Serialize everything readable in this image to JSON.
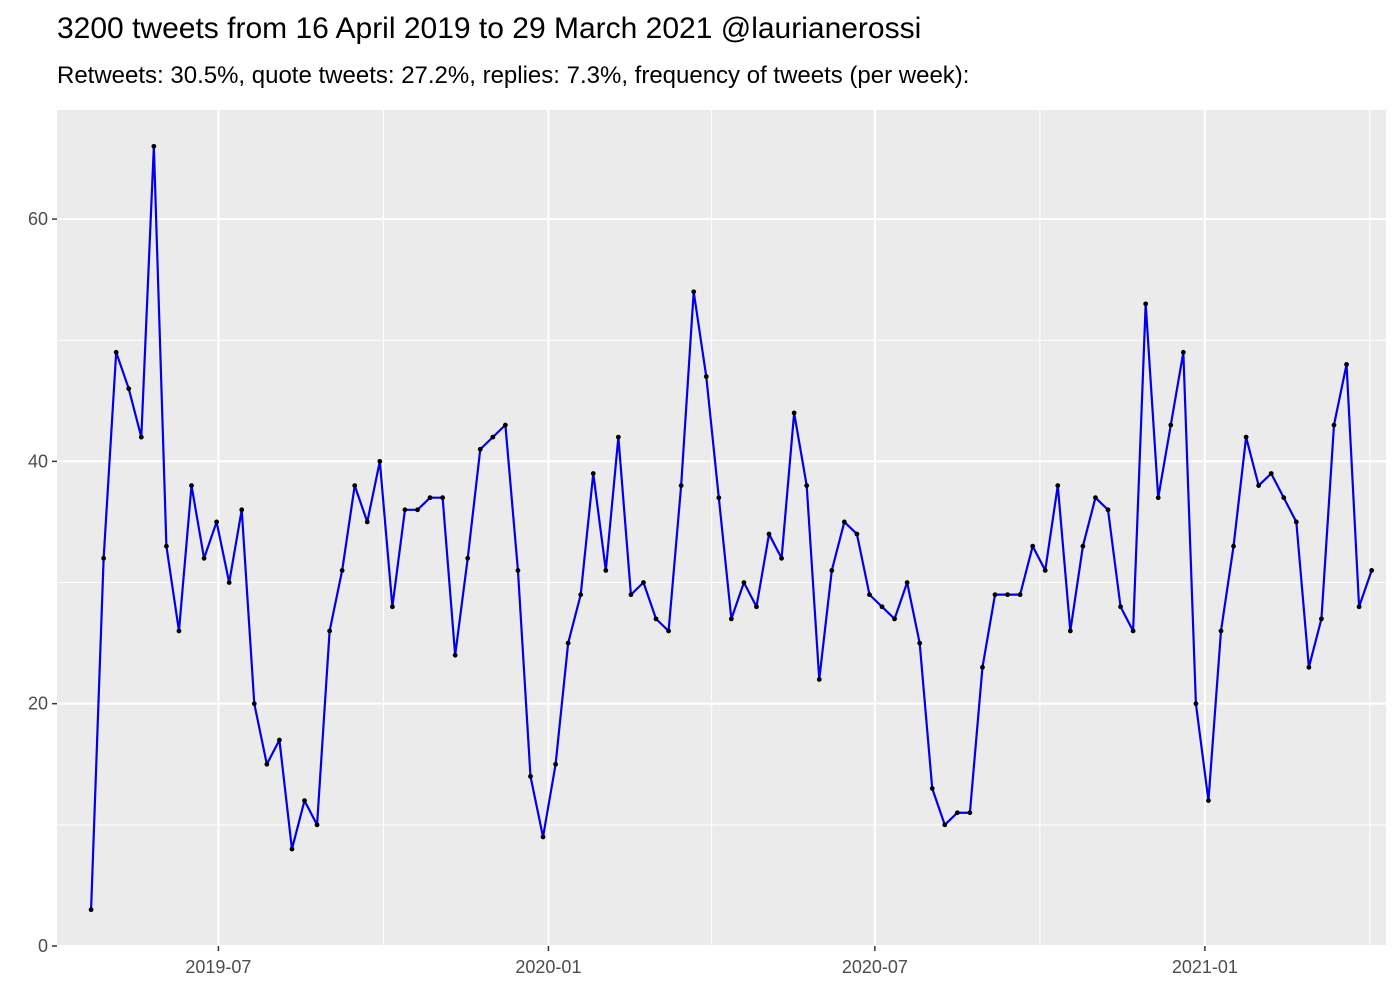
{
  "chart_data": {
    "type": "line",
    "title": "3200 tweets from 16 April 2019 to 29 March 2021 @laurianerossi",
    "subtitle": "Retweets: 30.5%, quote tweets: 27.2%, replies: 7.3%, frequency of tweets (per week):",
    "xlabel": "",
    "ylabel": "",
    "x_start": "2019-04-21",
    "x_step_days": 7,
    "xlim": [
      "2019-04-02",
      "2021-04-12"
    ],
    "ylim": [
      0,
      69
    ],
    "x_ticks": [
      "2019-07-01",
      "2020-01-01",
      "2020-07-01",
      "2021-01-01"
    ],
    "x_tick_labels": [
      "2019-07",
      "2020-01",
      "2020-07",
      "2021-01"
    ],
    "y_ticks": [
      0,
      20,
      40,
      60
    ],
    "y_tick_labels": [
      "0",
      "20",
      "40",
      "60"
    ],
    "grid": true,
    "line_color": "#0000EE",
    "point_color": "#000000",
    "panel_color": "#EBEBEB",
    "series": [
      {
        "values": [
          3,
          32,
          49,
          46,
          42,
          66,
          33,
          26,
          38,
          32,
          35,
          30,
          36,
          20,
          15,
          17,
          8,
          12,
          10,
          26,
          31,
          38,
          35,
          40,
          28,
          36,
          36,
          37,
          37,
          24,
          32,
          41,
          42,
          43,
          31,
          14,
          9,
          15,
          25,
          29,
          39,
          31,
          42,
          29,
          30,
          27,
          26,
          38,
          54,
          47,
          37,
          27,
          30,
          28,
          34,
          32,
          44,
          38,
          22,
          31,
          35,
          34,
          29,
          28,
          27,
          30,
          25,
          13,
          10,
          11,
          11,
          23,
          29,
          29,
          29,
          33,
          31,
          38,
          26,
          33,
          37,
          36,
          28,
          26,
          53,
          37,
          43,
          49,
          20,
          12,
          26,
          33,
          42,
          38,
          39,
          37,
          35,
          23,
          27,
          43,
          48,
          28,
          31
        ]
      }
    ]
  }
}
